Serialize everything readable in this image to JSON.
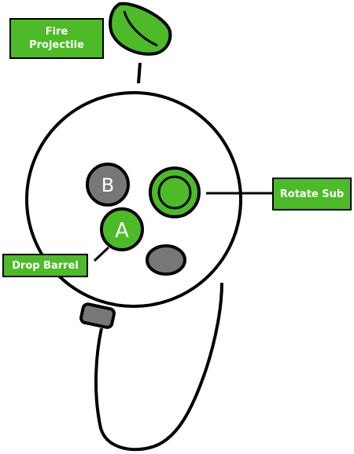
{
  "labels": {
    "fire_projectile": {
      "line1": "Fire",
      "line2": "Projectile"
    },
    "rotate_sub": "Rotate Sub",
    "drop_barrel": "Drop Barrel"
  },
  "buttons": {
    "a": "A",
    "b": "B"
  },
  "colors": {
    "accent_green": "#4cbb27",
    "button_gray": "#777777",
    "outline": "#000000",
    "label_text": "#ffffff"
  }
}
